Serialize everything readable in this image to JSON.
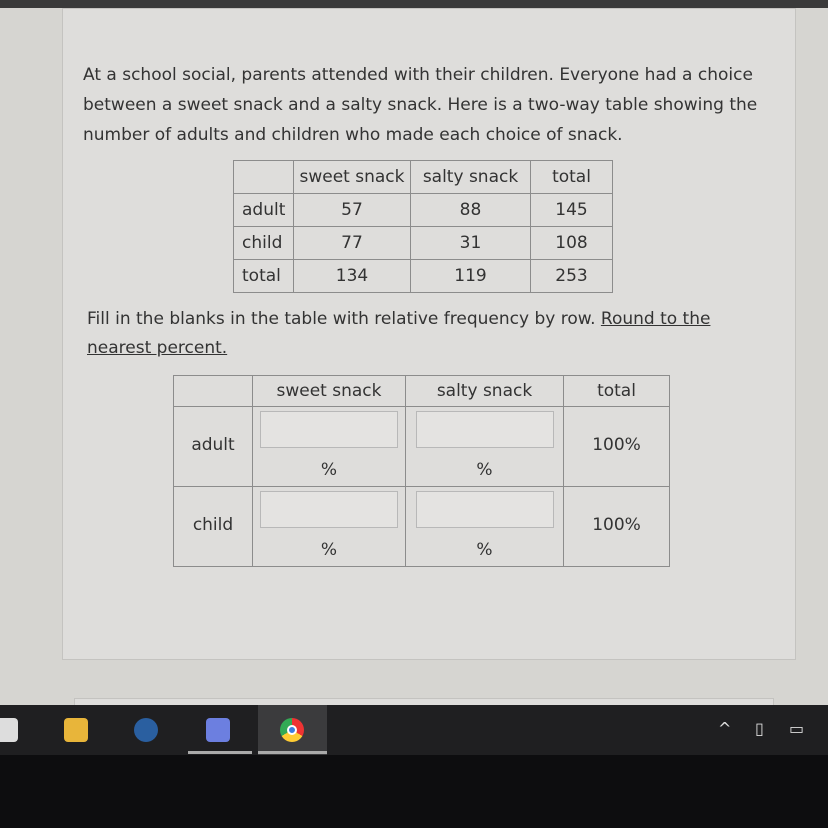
{
  "question": {
    "intro": "At a school social, parents attended with their children. Everyone had a choice between a sweet snack and a salty snack. Here is a two-way table showing the number of adults and children who made each choice of snack.",
    "table": {
      "headers": [
        "",
        "sweet snack",
        "salty snack",
        "total"
      ],
      "rows": [
        [
          "adult",
          "57",
          "88",
          "145"
        ],
        [
          "child",
          "77",
          "31",
          "108"
        ],
        [
          "total",
          "134",
          "119",
          "253"
        ]
      ]
    },
    "instruction": "Fill in the blanks in the table with relative frequency by row.",
    "instruction_link": "Round to the nearest percent."
  },
  "answer_table": {
    "headers": [
      "",
      "sweet snack",
      "salty snack",
      "total"
    ],
    "rows": [
      {
        "label": "adult",
        "total": "100%",
        "unit": "%"
      },
      {
        "label": "child",
        "total": "100%",
        "unit": "%"
      }
    ]
  },
  "taskbar": {
    "icons": [
      "store-icon",
      "file-explorer-icon",
      "steam-icon",
      "discord-icon",
      "chrome-icon"
    ],
    "tray": [
      "chevron-up-icon",
      "network-icon",
      "battery-icon"
    ]
  }
}
